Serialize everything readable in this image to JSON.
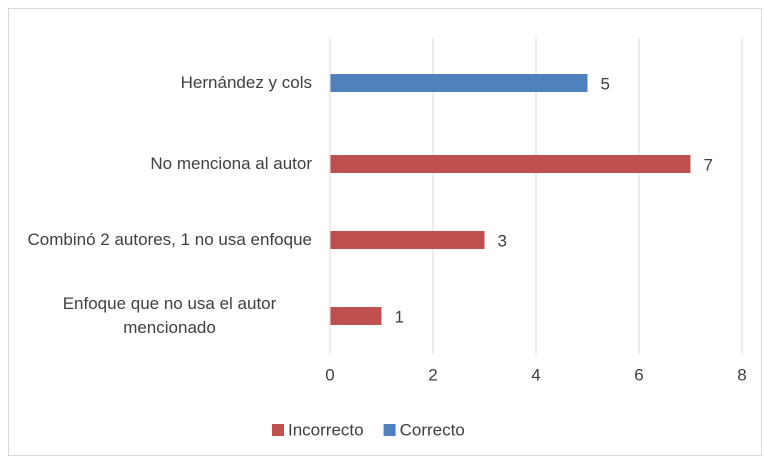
{
  "chart_data": {
    "type": "barh",
    "categories": [
      "Hernández y cols",
      "No menciona al autor",
      "Combinó 2 autores, 1 no usa enfoque",
      "Enfoque que no usa el autor mencionado"
    ],
    "series": [
      {
        "name": "Incorrecto",
        "color": "#c0504d",
        "values": [
          null,
          7,
          3,
          1
        ]
      },
      {
        "name": "Correcto",
        "color": "#4f81bd",
        "values": [
          5,
          null,
          null,
          null
        ]
      }
    ],
    "xlim": [
      0,
      8
    ],
    "xticks": [
      0,
      2,
      4,
      6,
      8
    ],
    "grid": true,
    "legend": "bottom"
  }
}
